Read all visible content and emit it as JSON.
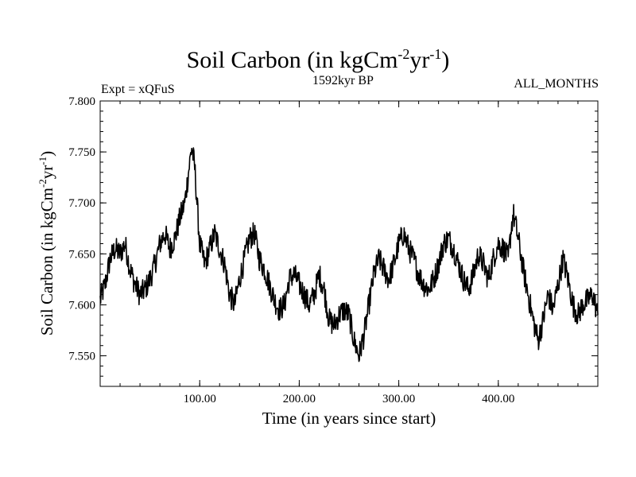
{
  "header": {
    "title_main": "Soil Carbon (in kgCm",
    "title_sup1": "-2",
    "title_mid": "yr",
    "title_sup2": "-1",
    "title_end": ")",
    "experiment": "Expt = xQFuS",
    "period": "1592kyr BP",
    "months": "ALL_MONTHS"
  },
  "chart_data": {
    "type": "line",
    "title": "Soil Carbon (in kgCm-2yr-1)",
    "xlabel": "Time (in years since start)",
    "ylabel": "Soil Carbon (in kgCm-2yr-1)",
    "ylabel_parts": {
      "main": "Soil Carbon (in kgCm",
      "sup1": "-2",
      "mid": "yr",
      "sup2": "-1",
      "end": ")"
    },
    "xlim": [
      0,
      500
    ],
    "ylim": [
      7.52,
      7.8
    ],
    "x_ticks": [
      100,
      200,
      300,
      400
    ],
    "x_tick_labels": [
      "100.00",
      "200.00",
      "300.00",
      "400.00"
    ],
    "y_ticks": [
      7.55,
      7.6,
      7.65,
      7.7,
      7.75,
      7.8
    ],
    "y_tick_labels": [
      "7.550",
      "7.600",
      "7.650",
      "7.700",
      "7.750",
      "7.800"
    ],
    "grid": false,
    "series": [
      {
        "name": "Soil Carbon",
        "color": "#000000",
        "x": [
          0,
          5,
          10,
          15,
          20,
          25,
          30,
          35,
          40,
          45,
          50,
          55,
          60,
          65,
          70,
          75,
          80,
          85,
          90,
          92,
          95,
          100,
          105,
          110,
          115,
          120,
          125,
          130,
          135,
          140,
          145,
          150,
          155,
          160,
          165,
          170,
          175,
          180,
          185,
          190,
          195,
          200,
          205,
          210,
          215,
          220,
          225,
          230,
          235,
          240,
          245,
          250,
          255,
          260,
          265,
          270,
          275,
          280,
          285,
          290,
          295,
          300,
          305,
          310,
          315,
          320,
          325,
          330,
          335,
          340,
          345,
          350,
          355,
          360,
          365,
          370,
          375,
          380,
          385,
          390,
          395,
          400,
          405,
          410,
          413,
          415,
          420,
          425,
          430,
          435,
          440,
          445,
          450,
          455,
          460,
          465,
          470,
          475,
          480,
          485,
          490,
          495,
          500
        ],
        "y": [
          7.605,
          7.62,
          7.645,
          7.655,
          7.65,
          7.66,
          7.635,
          7.62,
          7.61,
          7.615,
          7.625,
          7.64,
          7.66,
          7.67,
          7.655,
          7.665,
          7.685,
          7.7,
          7.74,
          7.755,
          7.735,
          7.66,
          7.64,
          7.655,
          7.67,
          7.655,
          7.64,
          7.61,
          7.6,
          7.625,
          7.645,
          7.665,
          7.67,
          7.645,
          7.635,
          7.62,
          7.605,
          7.595,
          7.6,
          7.625,
          7.63,
          7.62,
          7.61,
          7.6,
          7.61,
          7.63,
          7.615,
          7.585,
          7.58,
          7.59,
          7.595,
          7.59,
          7.565,
          7.55,
          7.57,
          7.6,
          7.63,
          7.645,
          7.635,
          7.625,
          7.64,
          7.66,
          7.67,
          7.655,
          7.645,
          7.63,
          7.62,
          7.615,
          7.625,
          7.64,
          7.66,
          7.665,
          7.655,
          7.64,
          7.625,
          7.615,
          7.63,
          7.65,
          7.64,
          7.625,
          7.645,
          7.66,
          7.655,
          7.645,
          7.675,
          7.69,
          7.665,
          7.635,
          7.61,
          7.585,
          7.565,
          7.585,
          7.61,
          7.595,
          7.62,
          7.645,
          7.625,
          7.6,
          7.59,
          7.6,
          7.605,
          7.61,
          7.59
        ]
      }
    ]
  }
}
